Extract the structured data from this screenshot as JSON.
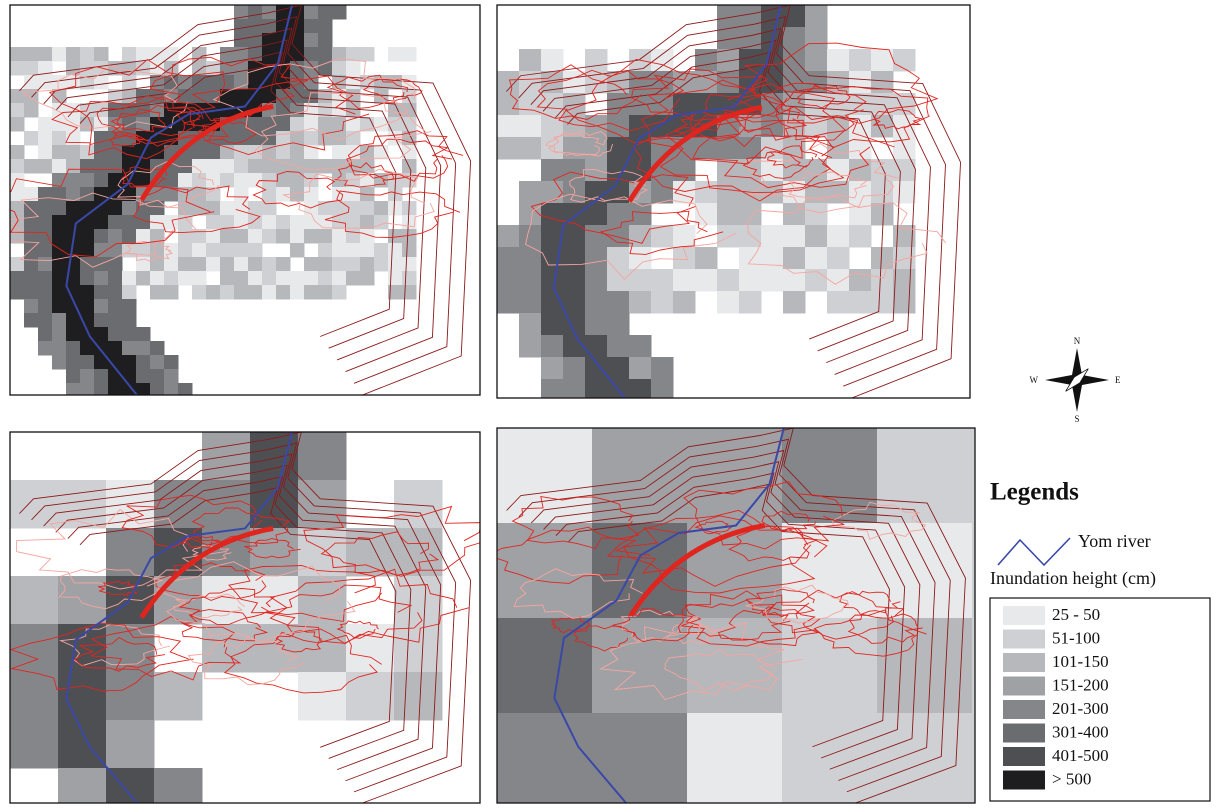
{
  "compass": {
    "north": "N",
    "south": "S",
    "east": "E",
    "west": "W"
  },
  "legend": {
    "title": "Legends",
    "river_label": "Yom river",
    "river_color": "#3a48a8",
    "subtitle": "Inundation height (cm)",
    "classes": [
      {
        "label": "25 - 50",
        "color": "#e8e9eb"
      },
      {
        "label": "51-100",
        "color": "#cfd0d3"
      },
      {
        "label": "101-150",
        "color": "#b7b8bc"
      },
      {
        "label": "151-200",
        "color": "#a0a1a5"
      },
      {
        "label": "201-300",
        "color": "#85868a"
      },
      {
        "label": "301-400",
        "color": "#6b6c70"
      },
      {
        "label": "401-500",
        "color": "#4e4f53"
      },
      {
        "label": "> 500",
        "color": "#1e1e20"
      }
    ]
  }
}
